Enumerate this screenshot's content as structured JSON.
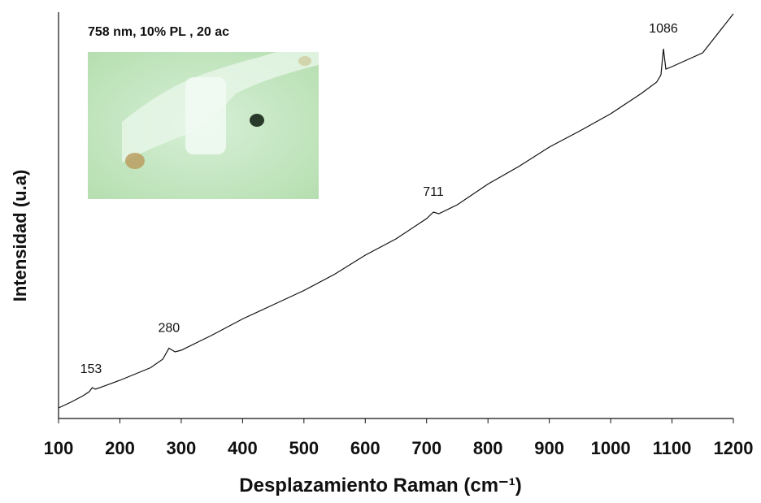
{
  "chart_data": {
    "type": "line",
    "title": "758 nm, 10% PL , 20 ac",
    "x_label": "Desplazamiento Raman (cm⁻¹)",
    "y_label": "Intensidad (u.a)",
    "xlim": [
      100,
      1200
    ],
    "ylim": [
      0,
      100
    ],
    "xticks": [
      100,
      200,
      300,
      400,
      500,
      600,
      700,
      800,
      900,
      1000,
      1100,
      1200
    ],
    "peaks": [
      153,
      280,
      711,
      1086
    ],
    "series": [
      {
        "color": "#111111",
        "x": [
          100,
          120,
          140,
          150,
          155,
          160,
          200,
          250,
          270,
          280,
          290,
          300,
          350,
          400,
          450,
          500,
          550,
          600,
          650,
          700,
          711,
          720,
          750,
          800,
          850,
          900,
          950,
          1000,
          1050,
          1075,
          1082,
          1086,
          1090,
          1100,
          1150,
          1200
        ],
        "values": [
          2.6,
          4.0,
          5.6,
          6.6,
          7.6,
          7.2,
          9.4,
          12.5,
          14.6,
          17.3,
          16.4,
          16.8,
          20.5,
          24.5,
          28.0,
          31.5,
          35.5,
          40.2,
          44.2,
          49.2,
          50.8,
          50.4,
          52.6,
          57.7,
          62.0,
          66.8,
          70.8,
          75.0,
          80.0,
          82.8,
          84.6,
          91.0,
          86.0,
          86.6,
          90.0,
          99.6
        ]
      }
    ]
  }
}
